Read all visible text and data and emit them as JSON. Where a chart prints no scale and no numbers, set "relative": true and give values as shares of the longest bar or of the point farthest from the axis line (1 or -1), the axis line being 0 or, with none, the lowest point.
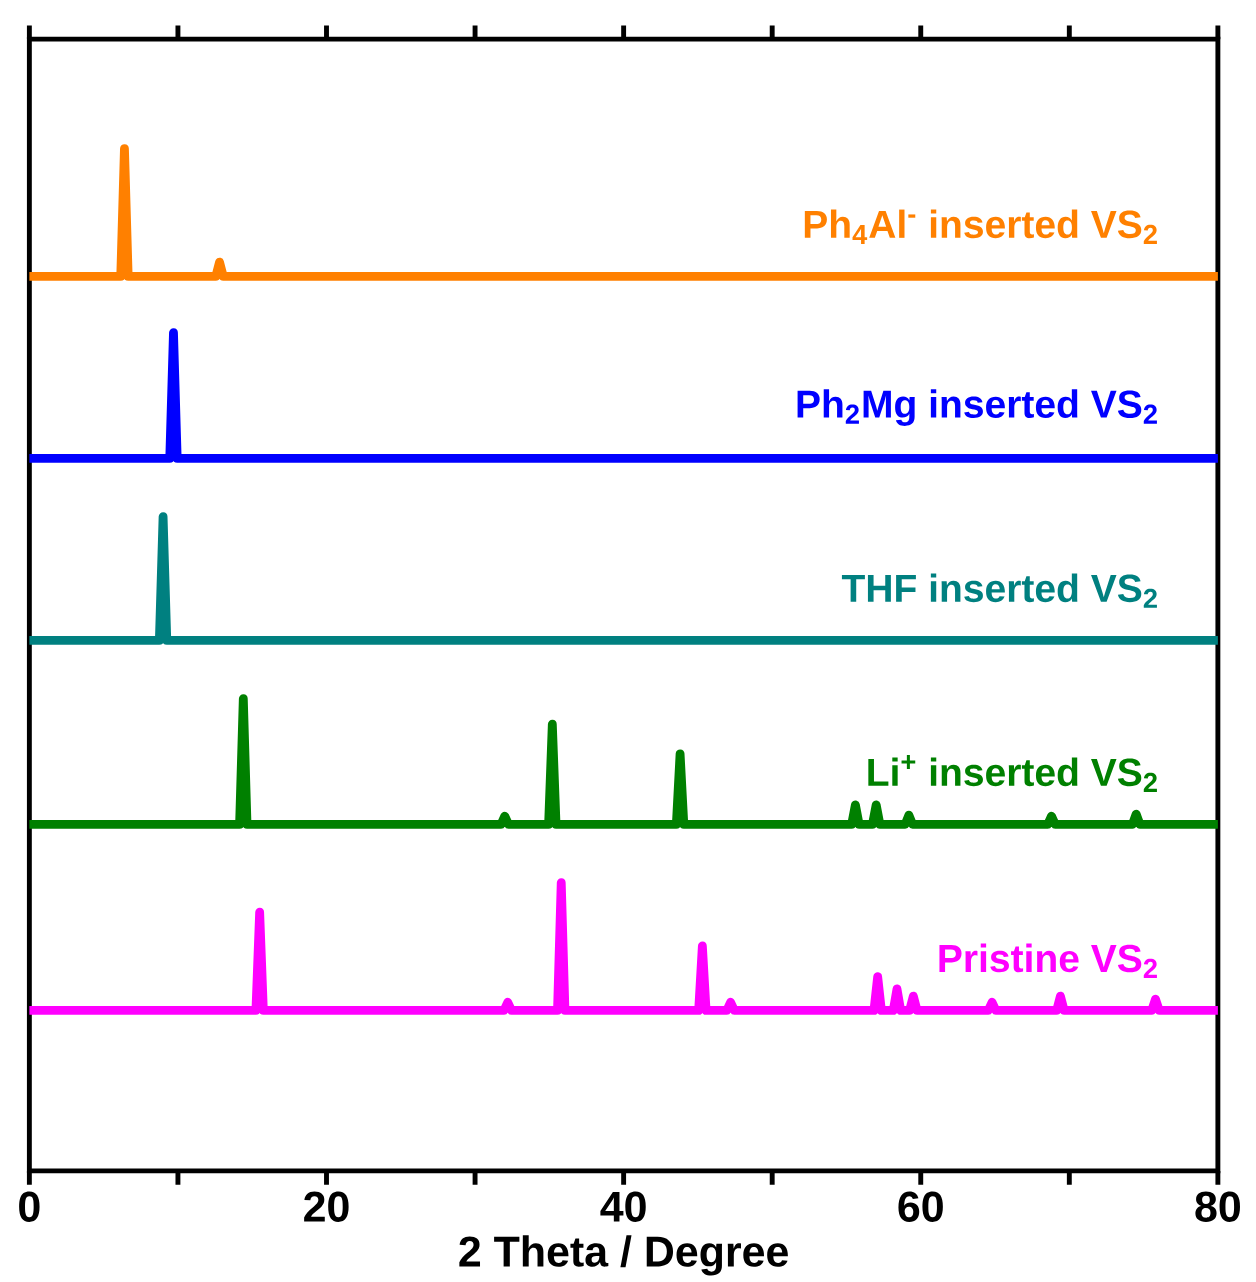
{
  "chart_data": {
    "type": "line",
    "relative": true,
    "xlabel": "2 Theta / Degree",
    "xlim": [
      0,
      80
    ],
    "xticks": [
      0,
      {
        "value": 10,
        "label": null
      },
      20,
      {
        "value": 30,
        "label": null
      },
      40,
      {
        "value": 50,
        "label": null
      },
      60,
      {
        "value": 70,
        "label": null
      },
      80
    ],
    "series": [
      {
        "name": "Ph$_{4}$Al$^{-}$ inserted VS$_{2}$",
        "color": "#ff8000",
        "x": [
          0,
          6.15,
          6.4,
          6.65,
          12.55,
          12.8,
          13.05,
          80
        ],
        "values": [
          0.875,
          0.875,
          1.0,
          0.875,
          0.875,
          0.889,
          0.875,
          0.875
        ]
      },
      {
        "name": "Ph$_{2}$Mg inserted VS$_{2}$",
        "color": "#0000ff",
        "x": [
          0,
          9.45,
          9.7,
          9.95,
          80
        ],
        "values": [
          0.697,
          0.697,
          0.82,
          0.697,
          0.697
        ]
      },
      {
        "name": "THF inserted VS$_{2}$",
        "color": "#008080",
        "x": [
          0,
          8.75,
          9.0,
          9.25,
          80
        ],
        "values": [
          0.519,
          0.519,
          0.64,
          0.519,
          0.519
        ]
      },
      {
        "name": "Li$^{+}$ inserted VS$_{2}$",
        "color": "#008000",
        "x": [
          0,
          14.15,
          14.4,
          14.65,
          31.75,
          32.0,
          32.25,
          34.95,
          35.2,
          35.45,
          43.55,
          43.8,
          44.05,
          55.35,
          55.6,
          55.85,
          56.75,
          57.0,
          57.25,
          58.95,
          59.2,
          59.45,
          68.55,
          68.8,
          69.05,
          74.25,
          74.5,
          74.75,
          80
        ],
        "values": [
          0.339,
          0.339,
          0.462,
          0.339,
          0.339,
          0.347,
          0.339,
          0.339,
          0.437,
          0.339,
          0.339,
          0.408,
          0.339,
          0.339,
          0.358,
          0.339,
          0.339,
          0.358,
          0.339,
          0.339,
          0.348,
          0.339,
          0.339,
          0.347,
          0.339,
          0.339,
          0.349,
          0.339,
          0.339
        ]
      },
      {
        "name": "Pristine VS$_{2}$",
        "color": "#ff00ff",
        "x": [
          0,
          15.25,
          15.5,
          15.75,
          31.95,
          32.2,
          32.45,
          35.55,
          35.8,
          36.05,
          45.05,
          45.3,
          45.55,
          46.95,
          47.2,
          47.45,
          56.85,
          57.1,
          57.35,
          58.15,
          58.4,
          58.65,
          59.25,
          59.5,
          59.75,
          64.55,
          64.8,
          65.05,
          69.15,
          69.4,
          69.65,
          75.55,
          75.8,
          76.05,
          80
        ],
        "values": [
          0.157,
          0.157,
          0.253,
          0.157,
          0.157,
          0.165,
          0.157,
          0.157,
          0.282,
          0.157,
          0.157,
          0.22,
          0.157,
          0.157,
          0.165,
          0.157,
          0.157,
          0.19,
          0.157,
          0.157,
          0.178,
          0.157,
          0.157,
          0.171,
          0.157,
          0.157,
          0.165,
          0.157,
          0.157,
          0.171,
          0.157,
          0.157,
          0.168,
          0.157,
          0.157
        ]
      }
    ]
  }
}
